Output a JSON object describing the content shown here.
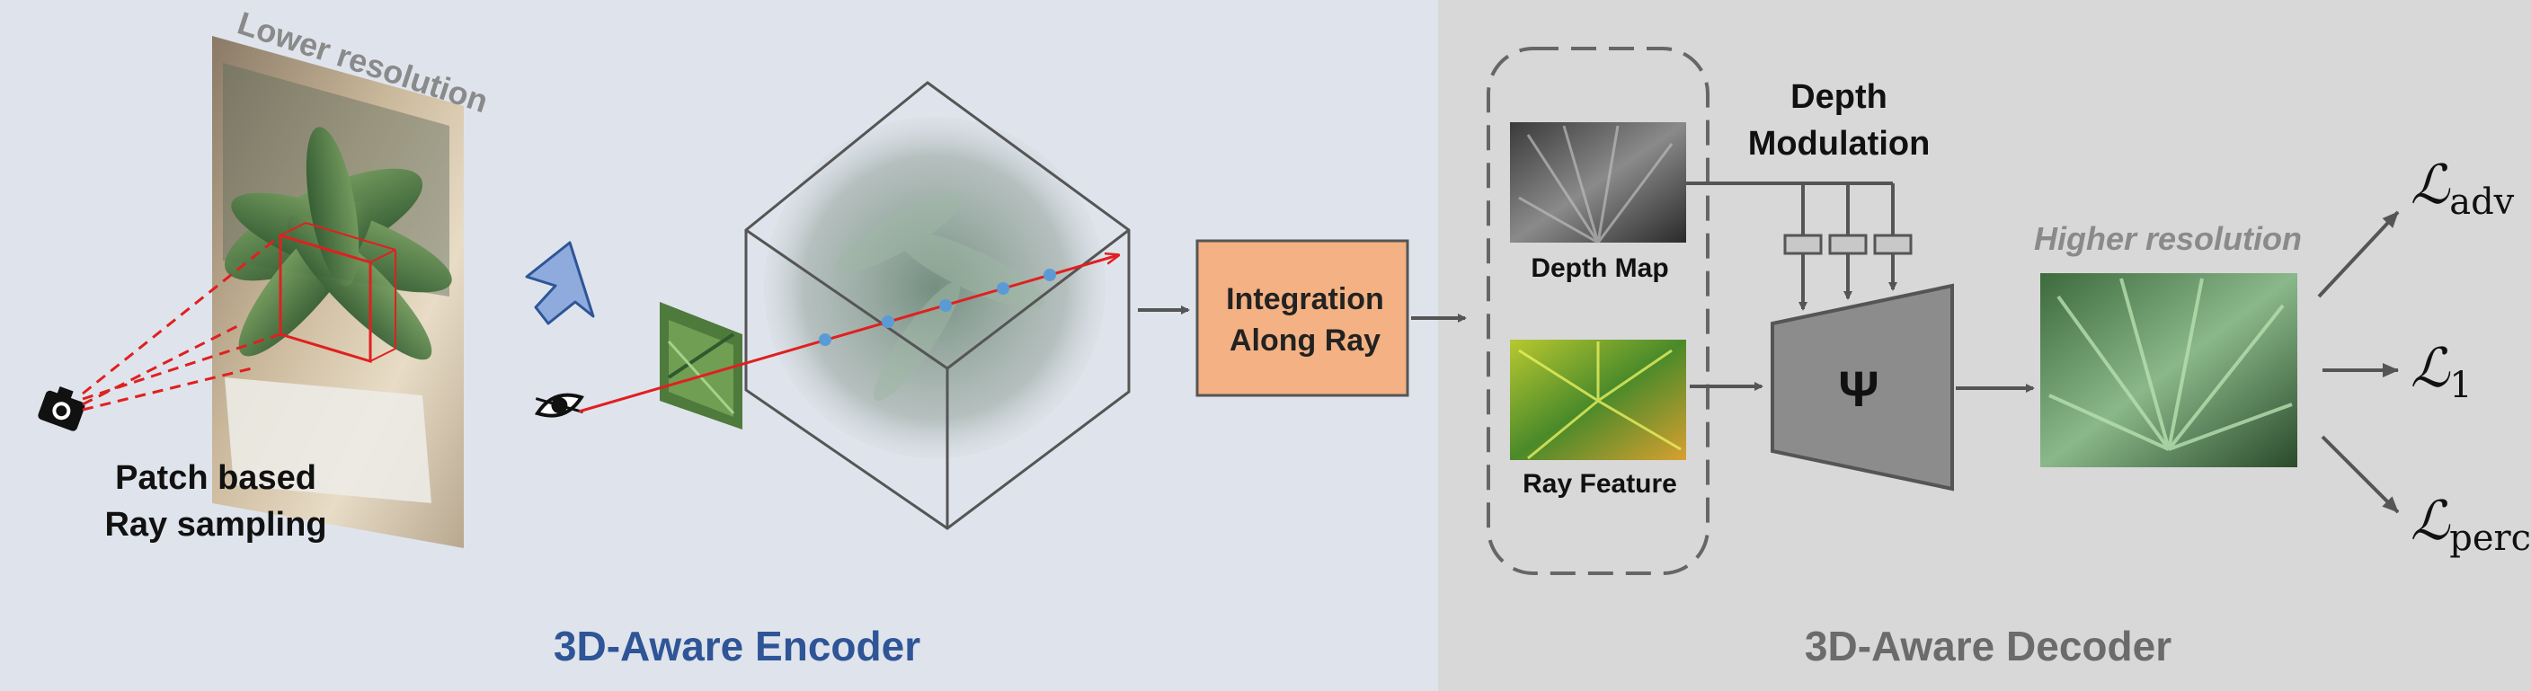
{
  "encoder": {
    "lower_resolution": "Lower resolution",
    "patch_line1": "Patch based",
    "patch_line2": "Ray sampling",
    "section_title": "3D-Aware Encoder",
    "integration_line1": "Integration",
    "integration_line2": "Along Ray"
  },
  "decoder": {
    "depth_mod_line1": "Depth",
    "depth_mod_line2": "Modulation",
    "depth_map_label": "Depth Map",
    "ray_feature_label": "Ray Feature",
    "psi_symbol": "Ψ",
    "higher_resolution": "Higher resolution",
    "section_title": "3D-Aware Decoder",
    "losses": [
      {
        "symbol": "ℒ",
        "sub": "adv"
      },
      {
        "symbol": "ℒ",
        "sub": "1"
      },
      {
        "symbol": "ℒ",
        "sub": "perc"
      }
    ]
  },
  "colors": {
    "encoder_bg": "#dfe4ec",
    "decoder_bg": "#d8d8d8",
    "encoder_title": "#2f5597",
    "decoder_title": "#6b6b6b",
    "integration_fill": "#f4b183",
    "ray": "#e02020",
    "sample_point": "#5b9bd5",
    "psi_fill": "#8c8c8c",
    "arrow_blue": "#8faadc"
  },
  "icons": [
    "camera-icon",
    "eye-icon",
    "blue-arrow-icon"
  ]
}
